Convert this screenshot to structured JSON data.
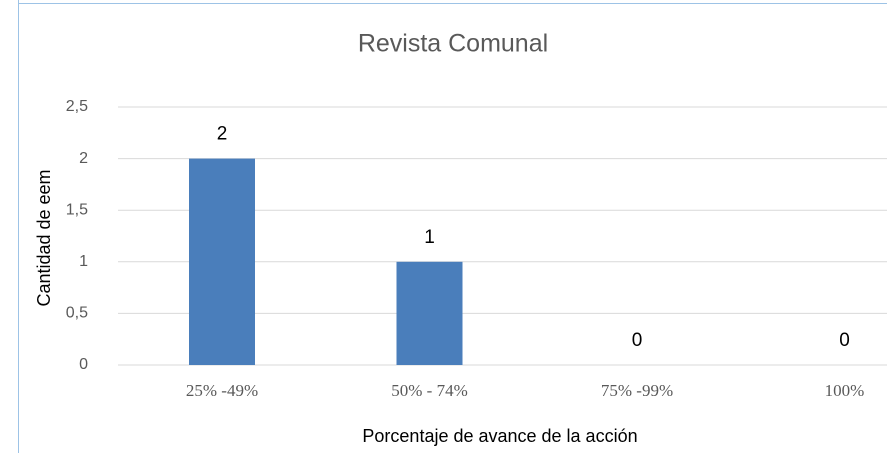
{
  "chart_data": {
    "type": "bar",
    "title": "Revista Comunal",
    "x_label": "Porcentaje de avance de la acción",
    "y_label": "Cantidad de eem",
    "categories": [
      "25% -49%",
      "50% - 74%",
      "75% -99%",
      "100%"
    ],
    "values": [
      2,
      1,
      0,
      0
    ],
    "color": "#4a7ebb",
    "ylim": [
      0,
      2.5
    ],
    "yticks": [
      0,
      {
        "value": 0.5,
        "label": "0,5"
      },
      1,
      {
        "value": 1.5,
        "label": "1,5"
      },
      2,
      {
        "value": 2.5,
        "label": "2,5"
      }
    ],
    "grid": true
  }
}
